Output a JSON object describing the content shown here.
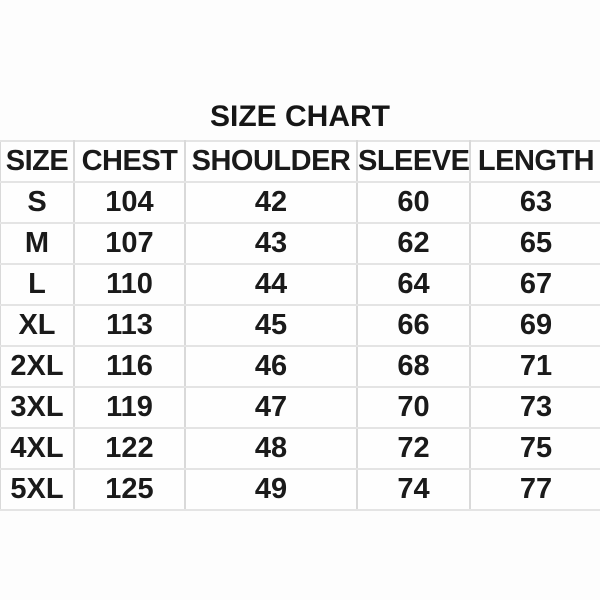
{
  "title": "SIZE CHART",
  "colors": {
    "background": "#fdfdfd",
    "text": "#1a1a1a",
    "gridline_vertical": "#d9d9d9",
    "gridline_horizontal": "#e4e4e4"
  },
  "chart_data": {
    "type": "table",
    "title": "SIZE CHART",
    "columns": [
      "SIZE",
      "CHEST",
      "SHOULDER",
      "SLEEVE",
      "LENGTH"
    ],
    "rows": [
      [
        "S",
        "104",
        "42",
        "60",
        "63"
      ],
      [
        "M",
        "107",
        "43",
        "62",
        "65"
      ],
      [
        "L",
        "110",
        "44",
        "64",
        "67"
      ],
      [
        "XL",
        "113",
        "45",
        "66",
        "69"
      ],
      [
        "2XL",
        "116",
        "46",
        "68",
        "71"
      ],
      [
        "3XL",
        "119",
        "47",
        "70",
        "73"
      ],
      [
        "4XL",
        "122",
        "48",
        "72",
        "75"
      ],
      [
        "5XL",
        "125",
        "49",
        "74",
        "77"
      ]
    ]
  }
}
